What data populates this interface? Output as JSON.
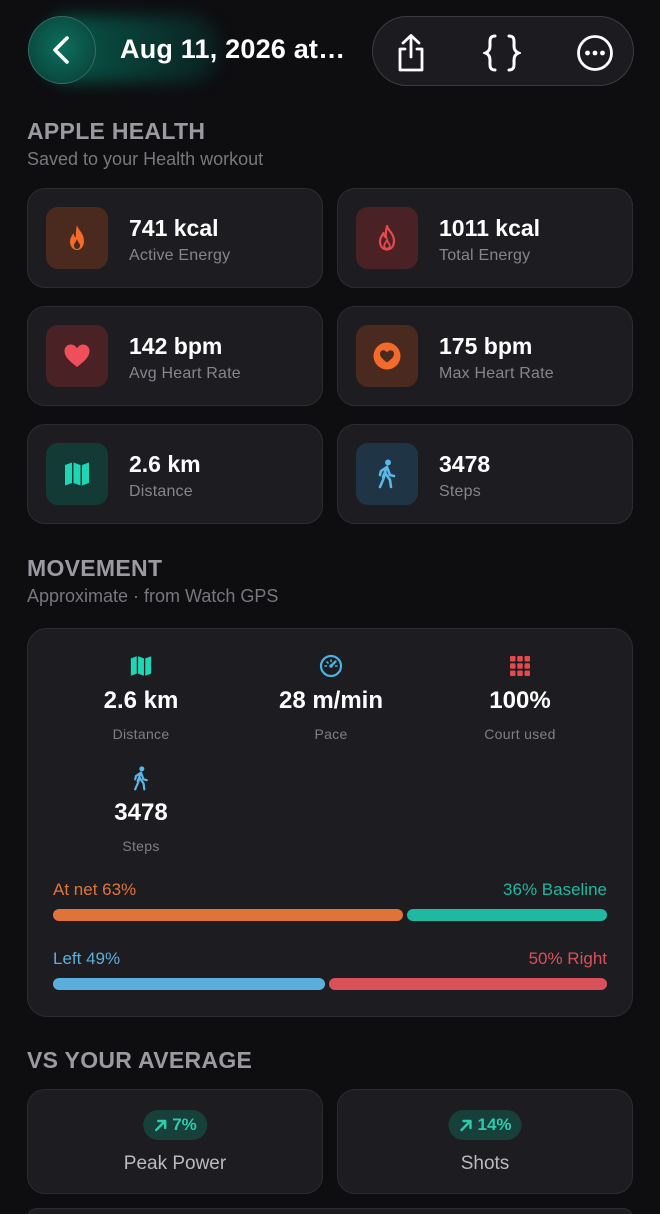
{
  "header": {
    "title": "Aug 11, 2026 at…"
  },
  "apple_health": {
    "title": "APPLE HEALTH",
    "subtitle": "Saved to your Health workout",
    "cards": [
      {
        "value": "741 kcal",
        "label": "Active Energy",
        "icon": "flame-icon",
        "color": "#f26b2a",
        "bg": "#4a2a1f"
      },
      {
        "value": "1011 kcal",
        "label": "Total Energy",
        "icon": "flame-outline-icon",
        "color": "#e5484d",
        "bg": "#4a2225"
      },
      {
        "value": "142 bpm",
        "label": "Avg Heart Rate",
        "icon": "heart-icon",
        "color": "#ef4f5a",
        "bg": "#4a2225"
      },
      {
        "value": "175 bpm",
        "label": "Max Heart Rate",
        "icon": "heart-circle-icon",
        "color": "#f26b2a",
        "bg": "#4a2a1f"
      },
      {
        "value": "2.6 km",
        "label": "Distance",
        "icon": "map-icon",
        "color": "#1fd6b4",
        "bg": "#143a35"
      },
      {
        "value": "3478",
        "label": "Steps",
        "icon": "walking-icon",
        "color": "#5ab7e8",
        "bg": "#1f3444"
      }
    ]
  },
  "movement": {
    "title": "MOVEMENT",
    "subtitle": "Approximate · from Watch GPS",
    "stats": [
      {
        "value": "2.6 km",
        "label": "Distance",
        "icon": "map-icon"
      },
      {
        "value": "28 m/min",
        "label": "Pace",
        "icon": "speedometer-icon"
      },
      {
        "value": "100%",
        "label": "Court used",
        "icon": "grid-icon"
      },
      {
        "value": "3478",
        "label": "Steps",
        "icon": "walking-icon"
      }
    ],
    "splits": [
      {
        "left_label": "At net 63%",
        "right_label": "36% Baseline",
        "left_fraction": 0.63,
        "right_fraction": 0.36,
        "left_color": "#e0733a",
        "right_color": "#1fb8a0"
      },
      {
        "left_label": "Left 49%",
        "right_label": "50% Right",
        "left_fraction": 0.49,
        "right_fraction": 0.5,
        "left_color": "#5aaedc",
        "right_color": "#d9505a"
      }
    ]
  },
  "vs_average": {
    "title": "VS YOUR AVERAGE",
    "items": [
      {
        "delta": "7%",
        "label": "Peak Power",
        "icon": "arrow-up-right-icon"
      },
      {
        "delta": "14%",
        "label": "Shots",
        "icon": "arrow-up-right-icon"
      }
    ]
  }
}
